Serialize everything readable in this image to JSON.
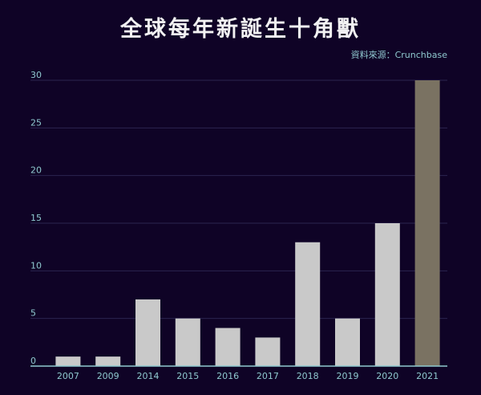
{
  "title": "全球每年新誕生十角獸",
  "source": "資料來源：Crunchbase",
  "colors": {
    "background": "#0f0326",
    "bar": "#c9c9c9",
    "highlight_bar": "#7a7262",
    "grid": "#2b2550",
    "axis": "#8fc9cf",
    "text": "#8fc9cf"
  },
  "chart_data": {
    "type": "bar",
    "categories": [
      "2007",
      "2009",
      "2014",
      "2015",
      "2016",
      "2017",
      "2018",
      "2019",
      "2020",
      "2021"
    ],
    "values": [
      1,
      1,
      7,
      5,
      4,
      3,
      13,
      5,
      15,
      30
    ],
    "highlight": "2021",
    "title": "全球每年新誕生十角獸",
    "xlabel": "",
    "ylabel": "",
    "ylim": [
      0,
      30
    ],
    "yticks": [
      0,
      5,
      10,
      15,
      20,
      25,
      30
    ],
    "grid": true,
    "legend": "none"
  }
}
